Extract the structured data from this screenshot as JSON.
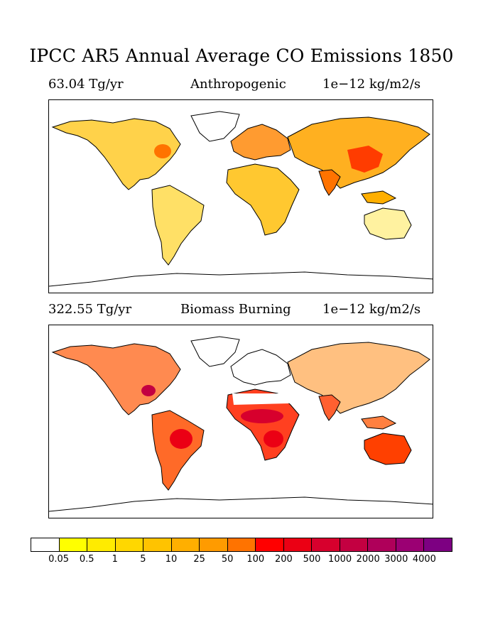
{
  "title": "IPCC AR5 Annual Average CO Emissions 1850",
  "panels": [
    {
      "total": "63.04 Tg/yr",
      "name": "Anthropogenic",
      "units": "1e−12 kg/m2/s"
    },
    {
      "total": "322.55 Tg/yr",
      "name": "Biomass Burning",
      "units": "1e−12 kg/m2/s"
    }
  ],
  "colorbar": {
    "colors": [
      "#ffffff",
      "#ffff00",
      "#ffeb00",
      "#ffd700",
      "#ffc300",
      "#ffaf00",
      "#ff9b00",
      "#ff7300",
      "#ff0000",
      "#eb0014",
      "#d7002d",
      "#c30041",
      "#af005a",
      "#9b0073",
      "#7d0082"
    ],
    "labels": [
      "0.05",
      "0.5",
      "1",
      "5",
      "10",
      "25",
      "50",
      "100",
      "200",
      "500",
      "1000",
      "2000",
      "3000",
      "4000"
    ]
  },
  "map_legend": {
    "anthropogenic": [
      {
        "region": "north-america",
        "color": "#ffd700"
      },
      {
        "region": "eastern-us",
        "color": "#ff7300"
      },
      {
        "region": "europe",
        "color": "#ff9b00"
      },
      {
        "region": "china",
        "color": "#ff3c00"
      },
      {
        "region": "india",
        "color": "#ff7300"
      }
    ],
    "biomass": [
      {
        "region": "africa-savanna",
        "color": "#eb0014"
      },
      {
        "region": "australia",
        "color": "#ff4000"
      },
      {
        "region": "eastern-us",
        "color": "#c30041"
      }
    ]
  }
}
